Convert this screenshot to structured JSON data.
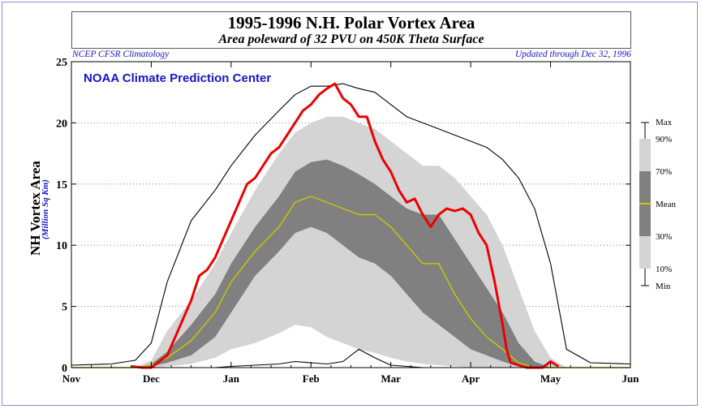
{
  "header": {
    "title": "1995-1996 N.H. Polar Vortex Area",
    "subtitle": "Area poleward of 32 PVU on 450K Theta Surface",
    "left_note": "NCEP CFSR Climatology",
    "right_note": "Updated through Dec 32, 1996",
    "watermark": "NOAA Climate Prediction Center"
  },
  "axis": {
    "ylabel": "NH Vortex Area",
    "yunit": "(Million Sq Km)",
    "yticks": [
      "0",
      "5",
      "10",
      "15",
      "20",
      "25"
    ],
    "xticks": [
      "Nov",
      "Dec",
      "Jan",
      "Feb",
      "Mar",
      "Apr",
      "May",
      "Jun"
    ]
  },
  "legend": {
    "labels": [
      "Max",
      "90%",
      "70%",
      "Mean",
      "30%",
      "10%",
      "Min"
    ]
  },
  "colors": {
    "outer_band": "#d4d4d4",
    "inner_band": "#808080",
    "mean": "#c8c800",
    "current": "#ee0000",
    "extremes": "#000000",
    "accent_text": "#1515c8"
  },
  "chart_data": {
    "type": "area",
    "x_unit": "month",
    "xlim": [
      0,
      7
    ],
    "ylim": [
      0,
      25
    ],
    "grid": "horizontal dotted",
    "x": [
      0,
      0.5,
      0.8,
      1.0,
      1.2,
      1.5,
      1.8,
      2.0,
      2.3,
      2.6,
      2.8,
      3.0,
      3.2,
      3.4,
      3.6,
      3.8,
      4.0,
      4.2,
      4.4,
      4.6,
      4.8,
      5.0,
      5.2,
      5.4,
      5.6,
      5.8,
      6.0,
      6.2,
      6.5,
      7.0
    ],
    "series": [
      {
        "name": "Max",
        "values": [
          0.2,
          0.3,
          0.6,
          2.0,
          7.0,
          12.0,
          14.5,
          16.5,
          19.0,
          21.0,
          22.3,
          23.0,
          23.0,
          23.2,
          22.8,
          22.5,
          21.5,
          20.5,
          20.0,
          19.5,
          19.0,
          18.5,
          18.0,
          17.0,
          15.5,
          13.0,
          8.5,
          1.5,
          0.4,
          0.3
        ]
      },
      {
        "name": "90%",
        "values": [
          0,
          0,
          0,
          0.6,
          3.0,
          5.5,
          8.5,
          11.0,
          14.5,
          17.5,
          19.2,
          20.0,
          20.5,
          20.5,
          20.0,
          19.5,
          18.5,
          17.5,
          16.5,
          16.5,
          15.5,
          14.0,
          12.5,
          10.0,
          6.5,
          3.0,
          0.8,
          0,
          0,
          0
        ]
      },
      {
        "name": "70%",
        "values": [
          0,
          0,
          0,
          0.3,
          1.3,
          3.5,
          6.0,
          8.5,
          11.5,
          14.0,
          16.0,
          16.8,
          17.0,
          16.5,
          15.8,
          15.0,
          14.0,
          13.0,
          12.5,
          12.5,
          10.5,
          8.5,
          6.5,
          4.5,
          2.0,
          0.5,
          0,
          0,
          0,
          0
        ]
      },
      {
        "name": "Mean",
        "values": [
          0,
          0,
          0,
          0.2,
          0.8,
          2.2,
          4.5,
          7.0,
          9.5,
          11.5,
          13.5,
          14.0,
          13.5,
          13.0,
          12.5,
          12.5,
          11.5,
          10.0,
          8.5,
          8.5,
          6.0,
          4.0,
          2.5,
          1.5,
          0.4,
          0,
          0,
          0,
          0,
          0
        ]
      },
      {
        "name": "30%",
        "values": [
          0,
          0,
          0,
          0.1,
          0.4,
          1.0,
          2.5,
          4.5,
          7.5,
          9.5,
          11.0,
          11.5,
          11.0,
          10.0,
          9.0,
          8.5,
          7.5,
          6.0,
          4.5,
          3.5,
          2.5,
          1.5,
          1.0,
          0.5,
          0.1,
          0,
          0,
          0,
          0,
          0
        ]
      },
      {
        "name": "10%",
        "values": [
          0,
          0,
          0,
          0,
          0.1,
          0.3,
          0.8,
          1.5,
          2.0,
          2.8,
          3.5,
          3.3,
          2.5,
          2.0,
          1.5,
          1.2,
          0.8,
          0.5,
          0.3,
          0.2,
          0.1,
          0,
          0,
          0,
          0,
          0,
          0,
          0,
          0,
          0
        ]
      },
      {
        "name": "Min",
        "values": [
          0,
          0,
          0,
          0,
          0,
          0,
          0,
          0.1,
          0.2,
          0.3,
          0.5,
          0.4,
          0.3,
          0.5,
          1.5,
          0.8,
          0.2,
          0.1,
          0,
          0,
          0,
          0,
          0,
          0,
          0,
          0,
          0,
          0,
          0,
          0
        ]
      }
    ],
    "current": {
      "x": [
        0.75,
        0.9,
        1.0,
        1.1,
        1.2,
        1.3,
        1.4,
        1.5,
        1.6,
        1.7,
        1.8,
        1.9,
        2.0,
        2.1,
        2.2,
        2.3,
        2.4,
        2.5,
        2.6,
        2.7,
        2.8,
        2.9,
        3.0,
        3.1,
        3.2,
        3.3,
        3.4,
        3.5,
        3.6,
        3.7,
        3.8,
        3.9,
        4.0,
        4.1,
        4.2,
        4.3,
        4.4,
        4.5,
        4.6,
        4.7,
        4.8,
        4.9,
        5.0,
        5.1,
        5.2,
        5.3,
        5.4,
        5.45,
        5.5,
        5.6,
        5.7,
        5.8,
        5.9,
        6.0,
        6.1
      ],
      "values": [
        0.1,
        0,
        0,
        0.5,
        1.0,
        2.5,
        4.0,
        5.5,
        7.5,
        8.0,
        9.0,
        10.5,
        12.0,
        13.5,
        15.0,
        15.5,
        16.5,
        17.5,
        18.0,
        19.0,
        20.0,
        21.0,
        21.5,
        22.3,
        22.8,
        23.2,
        22.0,
        21.5,
        20.5,
        20.5,
        18.5,
        17.0,
        16.0,
        14.5,
        13.5,
        13.8,
        12.5,
        11.5,
        12.5,
        13.0,
        12.8,
        13.0,
        12.5,
        11.0,
        10.0,
        7.0,
        3.5,
        1.5,
        0.4,
        0.2,
        0,
        0,
        0,
        0.5,
        0.1
      ]
    }
  }
}
